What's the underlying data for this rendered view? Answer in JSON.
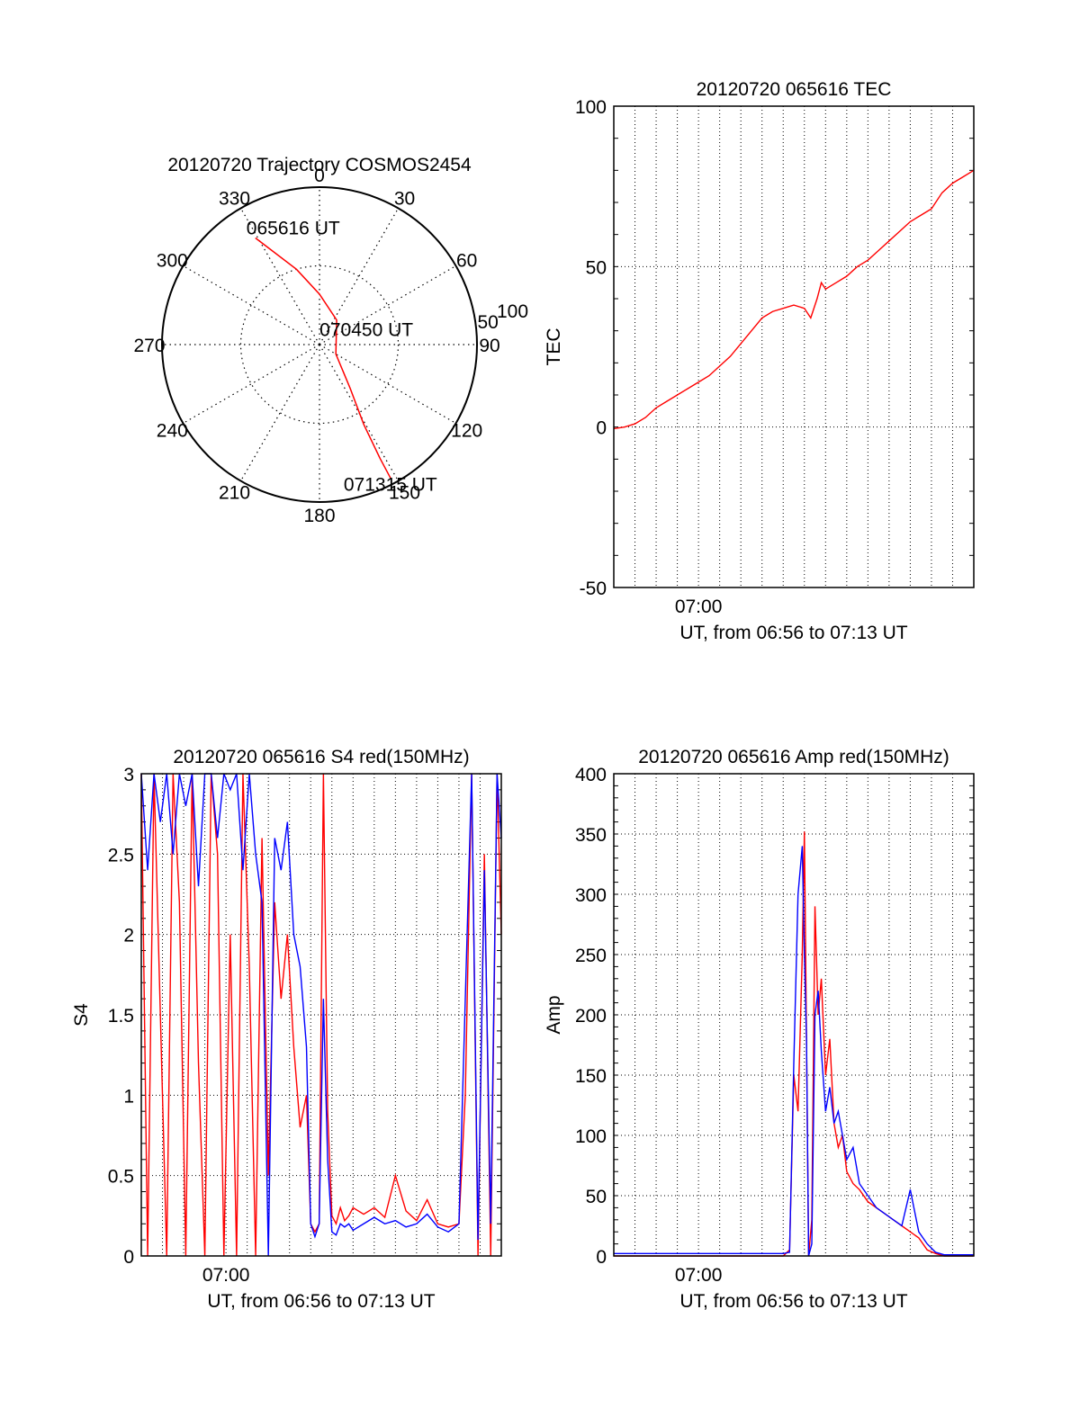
{
  "chart_data": [
    {
      "id": "trajectory",
      "type": "polar",
      "title": "20120720 Trajectory COSMOS2454",
      "angle_labels": [
        "0",
        "30",
        "60",
        "90",
        "120",
        "150",
        "180",
        "210",
        "240",
        "270",
        "300",
        "330"
      ],
      "ring_labels": [
        "50",
        "100"
      ],
      "zenith_max": 100,
      "points": [
        {
          "az": 329,
          "zen": 79,
          "label": "065616 UT"
        },
        {
          "az": 343,
          "zen": 50
        },
        {
          "az": 0,
          "zen": 32
        },
        {
          "az": 35,
          "zen": 19
        },
        {
          "az": 120,
          "zen": 12,
          "label": "070450 UT"
        },
        {
          "az": 145,
          "zen": 34
        },
        {
          "az": 151,
          "zen": 58
        },
        {
          "az": 152,
          "zen": 82
        },
        {
          "az": 152,
          "zen": 96,
          "label": "071315 UT"
        }
      ],
      "line_color": "#ff0000"
    },
    {
      "id": "tec",
      "type": "line",
      "title": "20120720 065616 TEC",
      "ylabel": "TEC",
      "xlabel": "UT, from 06:56 to 07:13 UT",
      "x_start_label": "06:56",
      "xlim": [
        0,
        17.0
      ],
      "ylim": [
        -50,
        100
      ],
      "yticks": [
        -50,
        0,
        50,
        100
      ],
      "xtick_labels": [
        {
          "x": 4,
          "label": "07:00"
        }
      ],
      "grid": true,
      "series": [
        {
          "color": "#ff0000",
          "x": [
            0,
            0.5,
            1.0,
            1.5,
            2.0,
            2.5,
            3.0,
            3.5,
            4.0,
            4.5,
            5.0,
            5.5,
            6.0,
            6.5,
            7.0,
            7.5,
            8.0,
            8.5,
            9.0,
            9.3,
            9.6,
            9.8,
            10.0,
            10.5,
            11.0,
            11.5,
            12.0,
            12.5,
            13.0,
            13.5,
            14.0,
            14.5,
            15.0,
            15.5,
            16.0,
            16.5,
            17.0
          ],
          "y": [
            -0.5,
            0,
            1,
            3,
            6,
            8,
            10,
            12,
            14,
            16,
            19,
            22,
            26,
            30,
            34,
            36,
            37,
            38,
            37,
            34,
            40,
            45,
            43,
            45,
            47,
            50,
            52,
            55,
            58,
            61,
            64,
            66,
            68,
            73,
            76,
            78,
            80
          ]
        }
      ]
    },
    {
      "id": "s4",
      "type": "line",
      "title": "20120720 065616 S4 red(150MHz)",
      "ylabel": "S4",
      "xlabel": "UT, from 06:56 to 07:13 UT",
      "x_start_label": "06:56",
      "xlim": [
        0,
        17.0
      ],
      "ylim": [
        0,
        3
      ],
      "yticks": [
        0,
        0.5,
        1,
        1.5,
        2,
        2.5,
        3
      ],
      "ytick_labels": [
        "0",
        "0.5",
        "1",
        "1.5",
        "2",
        "2.5",
        "3"
      ],
      "xtick_labels": [
        {
          "x": 4,
          "label": "07:00"
        }
      ],
      "grid": true,
      "series": [
        {
          "name": "red",
          "color": "#ff0000",
          "x": [
            0,
            0.3,
            0.6,
            0.9,
            1.2,
            1.5,
            1.8,
            2.1,
            2.4,
            2.7,
            3.0,
            3.3,
            3.6,
            3.9,
            4.2,
            4.5,
            4.8,
            5.1,
            5.4,
            5.7,
            6.0,
            6.3,
            6.6,
            6.9,
            7.2,
            7.5,
            7.8,
            8.0,
            8.2,
            8.4,
            8.6,
            8.8,
            9.0,
            9.2,
            9.4,
            9.6,
            9.8,
            10.0,
            10.5,
            11.0,
            11.5,
            12.0,
            12.5,
            13.0,
            13.5,
            14.0,
            14.5,
            15.0,
            15.3,
            15.6,
            15.9,
            16.2,
            16.5,
            16.8,
            17.0
          ],
          "y": [
            3,
            0,
            3,
            1.5,
            0,
            3,
            2.2,
            0,
            3,
            1.2,
            0,
            3,
            2.5,
            0,
            2.0,
            0,
            3,
            1.8,
            0,
            2.6,
            0.5,
            2.2,
            1.6,
            2.0,
            1.3,
            0.8,
            1.0,
            0.2,
            0.15,
            0.2,
            3.0,
            0.9,
            0.25,
            0.2,
            0.3,
            0.22,
            0.25,
            0.3,
            0.26,
            0.3,
            0.24,
            0.5,
            0.28,
            0.22,
            0.35,
            0.2,
            0.18,
            0.2,
            1.0,
            3,
            0,
            2.5,
            0,
            3,
            2.0
          ]
        },
        {
          "name": "blue",
          "color": "#0000ff",
          "x": [
            0,
            0.3,
            0.6,
            0.9,
            1.2,
            1.5,
            1.8,
            2.1,
            2.4,
            2.7,
            3.0,
            3.3,
            3.6,
            3.9,
            4.2,
            4.5,
            4.8,
            5.1,
            5.4,
            5.7,
            6.0,
            6.3,
            6.6,
            6.9,
            7.2,
            7.5,
            7.8,
            8.0,
            8.2,
            8.4,
            8.6,
            8.8,
            9.0,
            9.2,
            9.4,
            9.6,
            9.8,
            10.0,
            10.5,
            11.0,
            11.5,
            12.0,
            12.5,
            13.0,
            13.5,
            14.0,
            14.5,
            15.0,
            15.3,
            15.6,
            15.9,
            16.2,
            16.5,
            16.8,
            17.0
          ],
          "y": [
            3,
            2.4,
            3,
            2.7,
            3,
            2.5,
            3,
            2.8,
            3,
            2.3,
            3,
            3,
            2.6,
            3,
            2.9,
            3,
            2.4,
            3,
            2.5,
            2.2,
            0,
            2.6,
            2.4,
            2.7,
            2.0,
            1.8,
            1.3,
            0.2,
            0.12,
            0.2,
            1.6,
            0.6,
            0.15,
            0.13,
            0.2,
            0.18,
            0.2,
            0.16,
            0.2,
            0.24,
            0.2,
            0.22,
            0.18,
            0.2,
            0.26,
            0.18,
            0.15,
            0.2,
            1.6,
            3,
            0.1,
            2.4,
            0.2,
            3,
            2.6
          ]
        }
      ]
    },
    {
      "id": "amp",
      "type": "line",
      "title": "20120720 065616 Amp red(150MHz)",
      "ylabel": "Amp",
      "xlabel": "UT, from 06:56 to 07:13 UT",
      "x_start_label": "06:56",
      "xlim": [
        0,
        17.0
      ],
      "ylim": [
        0,
        400
      ],
      "yticks": [
        0,
        50,
        100,
        150,
        200,
        250,
        300,
        350,
        400
      ],
      "xtick_labels": [
        {
          "x": 4,
          "label": "07:00"
        }
      ],
      "grid": true,
      "series": [
        {
          "name": "red",
          "color": "#ff0000",
          "x": [
            0,
            2,
            4,
            6,
            8.0,
            8.3,
            8.5,
            8.7,
            8.9,
            9.0,
            9.1,
            9.2,
            9.35,
            9.5,
            9.65,
            9.8,
            10.0,
            10.2,
            10.4,
            10.6,
            10.8,
            11.0,
            11.3,
            11.6,
            12.0,
            12.4,
            12.8,
            13.2,
            13.6,
            14.0,
            14.4,
            14.8,
            15.2,
            15.6,
            16.0,
            17.0
          ],
          "y": [
            0,
            0,
            0,
            0,
            0,
            5,
            150,
            120,
            250,
            352,
            180,
            0,
            30,
            290,
            200,
            230,
            150,
            180,
            110,
            90,
            100,
            70,
            60,
            55,
            45,
            40,
            35,
            30,
            25,
            20,
            15,
            5,
            2,
            0,
            0,
            0
          ]
        },
        {
          "name": "blue",
          "color": "#0000ff",
          "x": [
            0,
            2,
            4,
            6,
            8.0,
            8.3,
            8.5,
            8.7,
            8.9,
            9.0,
            9.1,
            9.2,
            9.35,
            9.5,
            9.65,
            9.8,
            10.0,
            10.2,
            10.4,
            10.6,
            10.8,
            11.0,
            11.3,
            11.6,
            12.0,
            12.4,
            12.8,
            13.2,
            13.6,
            14.0,
            14.4,
            14.8,
            15.2,
            15.6,
            16.0,
            17.0
          ],
          "y": [
            2,
            2,
            2,
            2,
            2,
            3,
            160,
            300,
            340,
            250,
            180,
            0,
            10,
            200,
            220,
            170,
            120,
            140,
            110,
            120,
            100,
            80,
            90,
            60,
            50,
            40,
            35,
            30,
            25,
            55,
            20,
            10,
            3,
            1,
            1,
            1
          ]
        }
      ]
    }
  ]
}
